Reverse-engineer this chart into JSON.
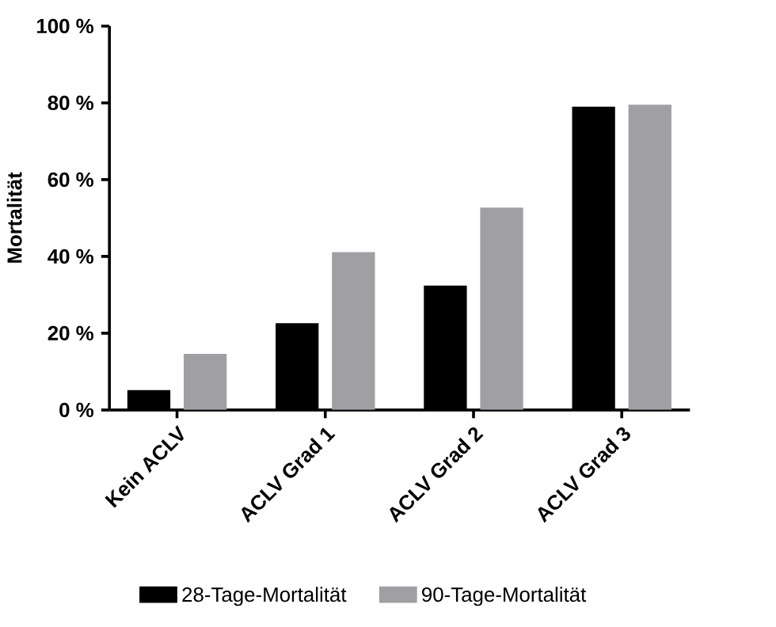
{
  "chart_data": {
    "type": "bar",
    "ylabel": "Mortalität",
    "categories": [
      "Kein ACLV",
      "ACLV Grad 1",
      "ACLV Grad 2",
      "ACLV Grad 3"
    ],
    "series": [
      {
        "name": "28-Tage-Mortalität",
        "color": "#000000",
        "values": [
          5.2,
          22.6,
          32.4,
          79.0
        ]
      },
      {
        "name": "90-Tage-Mortalität",
        "color": "#a0a0a4",
        "values": [
          14.6,
          41.1,
          52.7,
          79.5
        ]
      }
    ],
    "ylim": [
      0,
      100
    ],
    "yticks": [
      {
        "value": 0,
        "label": "0 %"
      },
      {
        "value": 20,
        "label": "20 %"
      },
      {
        "value": 40,
        "label": "40 %"
      },
      {
        "value": 60,
        "label": "60 %"
      },
      {
        "value": 80,
        "label": "80 %"
      },
      {
        "value": 100,
        "label": "100 %"
      }
    ],
    "legend": "bottom"
  }
}
